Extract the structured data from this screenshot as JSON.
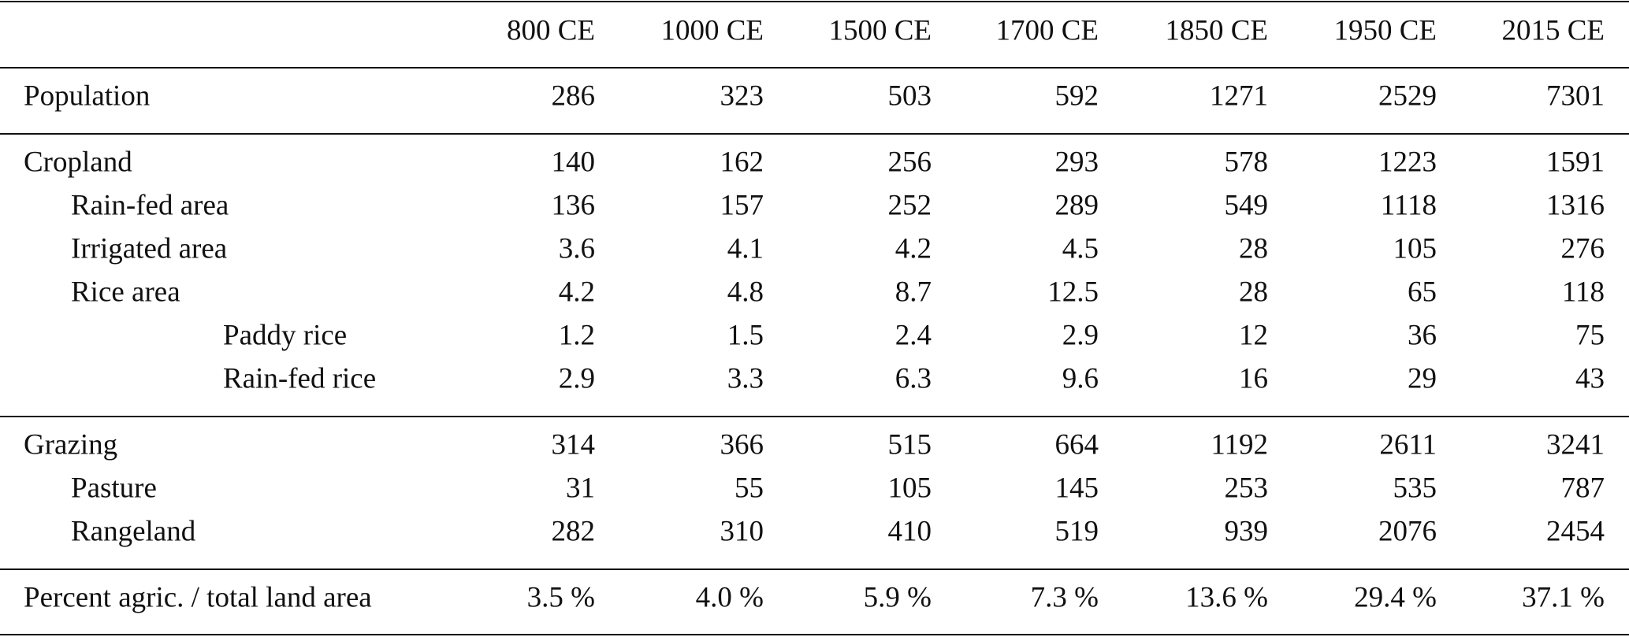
{
  "table": {
    "columns": [
      "800 CE",
      "1000 CE",
      "1500 CE",
      "1700 CE",
      "1850 CE",
      "1950 CE",
      "2015 CE"
    ],
    "rows": [
      {
        "label": "Population",
        "values": [
          "286",
          "323",
          "503",
          "592",
          "1271",
          "2529",
          "7301"
        ]
      },
      {
        "label": "Cropland",
        "values": [
          "140",
          "162",
          "256",
          "293",
          "578",
          "1223",
          "1591"
        ]
      },
      {
        "label": "Rain-fed area",
        "values": [
          "136",
          "157",
          "252",
          "289",
          "549",
          "1118",
          "1316"
        ]
      },
      {
        "label": "Irrigated area",
        "values": [
          "3.6",
          "4.1",
          "4.2",
          "4.5",
          "28",
          "105",
          "276"
        ]
      },
      {
        "label": "Rice area",
        "values": [
          "4.2",
          "4.8",
          "8.7",
          "12.5",
          "28",
          "65",
          "118"
        ]
      },
      {
        "label": "Paddy rice",
        "values": [
          "1.2",
          "1.5",
          "2.4",
          "2.9",
          "12",
          "36",
          "75"
        ]
      },
      {
        "label": "Rain-fed rice",
        "values": [
          "2.9",
          "3.3",
          "6.3",
          "9.6",
          "16",
          "29",
          "43"
        ]
      },
      {
        "label": "Grazing",
        "values": [
          "314",
          "366",
          "515",
          "664",
          "1192",
          "2611",
          "3241"
        ]
      },
      {
        "label": "Pasture",
        "values": [
          "31",
          "55",
          "105",
          "145",
          "253",
          "535",
          "787"
        ]
      },
      {
        "label": "Rangeland",
        "values": [
          "282",
          "310",
          "410",
          "519",
          "939",
          "2076",
          "2454"
        ]
      },
      {
        "label": "Percent agric. / total land area",
        "values": [
          "3.5 %",
          "4.0 %",
          "5.9 %",
          "7.3 %",
          "13.6 %",
          "29.4 %",
          "37.1 %"
        ]
      }
    ]
  }
}
